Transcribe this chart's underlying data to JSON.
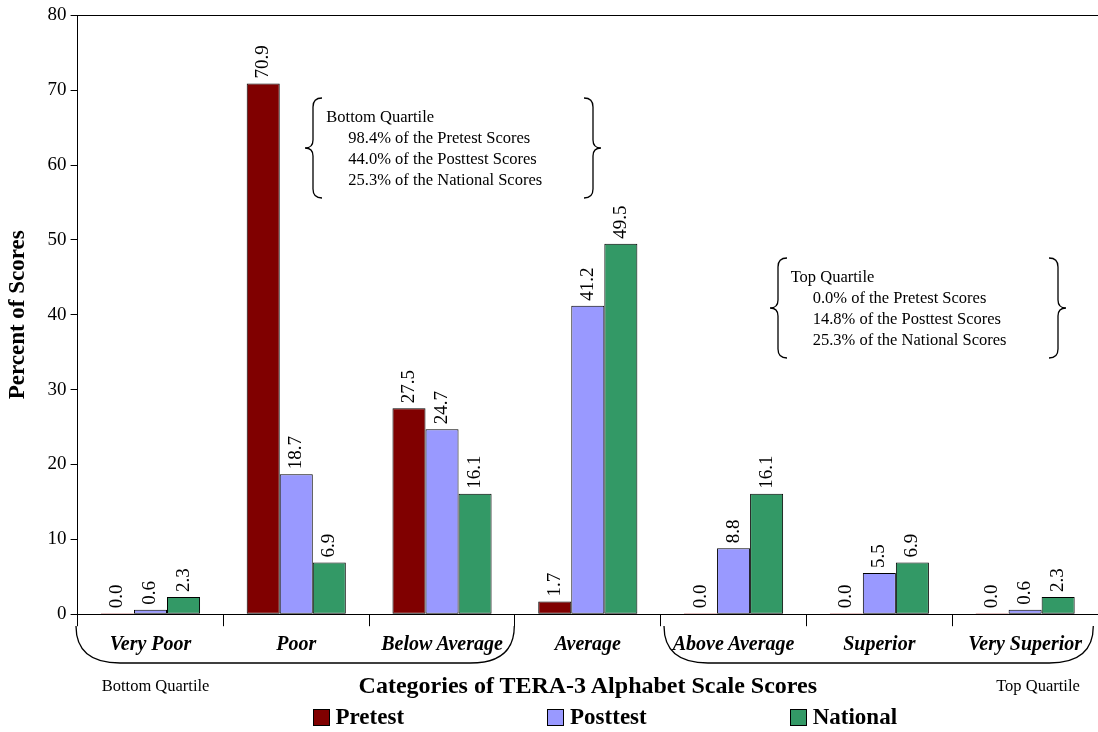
{
  "chart_data": {
    "type": "bar",
    "categories": [
      "Very Poor",
      "Poor",
      "Below Average",
      "Average",
      "Above Average",
      "Superior",
      "Very Superior"
    ],
    "series": [
      {
        "name": "Pretest",
        "color": "#800000",
        "values": [
          0.0,
          70.9,
          27.5,
          1.7,
          0.0,
          0.0,
          0.0
        ],
        "value_labels": [
          "0.0",
          "70.9",
          "27.5",
          "1.7",
          "0.0",
          "0.0",
          "0.0"
        ]
      },
      {
        "name": "Posttest",
        "color": "#9999ff",
        "values": [
          0.6,
          18.7,
          24.7,
          41.2,
          8.8,
          5.5,
          0.6
        ],
        "value_labels": [
          "0.6",
          "18.7",
          "24.7",
          "41.2",
          "8.8",
          "5.5",
          "0.6"
        ]
      },
      {
        "name": "National",
        "color": "#339966",
        "values": [
          2.3,
          6.9,
          16.1,
          49.5,
          16.1,
          6.9,
          2.3
        ],
        "value_labels": [
          "2.3",
          "6.9",
          "16.1",
          "49.5",
          "16.1",
          "6.9",
          "2.3"
        ]
      }
    ],
    "xlabel": "Categories of TERA-3 Alphabet Scale Scores",
    "ylabel": "Percent of Scores",
    "ylim": [
      0,
      80
    ],
    "yticks": [
      0,
      10,
      20,
      30,
      40,
      50,
      60,
      70,
      80
    ],
    "legend": "bottom",
    "annotations": [
      "Bottom Quartile\n98.4% of the Pretest Scores\n44.0% of the Posttest Scores\n25.3% of the National Scores",
      "Top Quartile\n0.0% of the Pretest Scores\n14.8% of the Posttest Scores\n25.3% of the National Scores",
      "Bottom Quartile",
      "Top Quartile"
    ]
  }
}
